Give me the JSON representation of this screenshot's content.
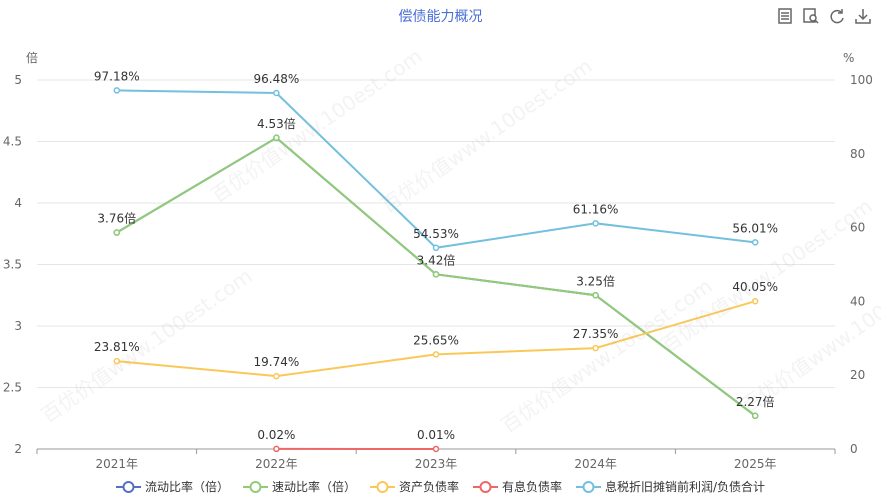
{
  "title": "偿债能力概况",
  "watermark": "百优价值www.100est.com",
  "toolbox": [
    {
      "name": "data-view-icon"
    },
    {
      "name": "zoom-icon"
    },
    {
      "name": "refresh-icon"
    },
    {
      "name": "download-icon"
    }
  ],
  "colors": {
    "grid": "#e6e6e6",
    "axis": "#999999"
  },
  "chart_data": {
    "type": "line",
    "categories": [
      "2021年",
      "2022年",
      "2023年",
      "2024年",
      "2025年"
    ],
    "y_left": {
      "label": "倍",
      "ticks": [
        "2",
        "2.5",
        "3",
        "3.5",
        "4",
        "4.5",
        "5"
      ],
      "min": 2,
      "max": 5
    },
    "y_right": {
      "label": "%",
      "ticks": [
        "0",
        "20",
        "40",
        "60",
        "80",
        "100"
      ],
      "min": 0,
      "max": 100
    },
    "grid": true,
    "legend_position": "bottom",
    "series": [
      {
        "name": "流动比率（倍）",
        "axis": "left",
        "color": "#5470c6",
        "values": [
          3.76,
          4.53,
          3.42,
          3.25,
          2.27
        ],
        "labels": [],
        "hidden_under": "速动比率（倍）"
      },
      {
        "name": "速动比率（倍）",
        "axis": "left",
        "color": "#91cc75",
        "values": [
          3.76,
          4.53,
          3.42,
          3.25,
          2.27
        ],
        "labels": [
          "3.76倍",
          "4.53倍",
          "3.42倍",
          "3.25倍",
          "2.27倍"
        ]
      },
      {
        "name": "资产负债率",
        "axis": "right",
        "color": "#fac858",
        "values": [
          23.81,
          19.74,
          25.65,
          27.35,
          40.05
        ],
        "labels": [
          "23.81%",
          "19.74%",
          "25.65%",
          "27.35%",
          "40.05%"
        ]
      },
      {
        "name": "有息负债率",
        "axis": "right",
        "color": "#ee6666",
        "values": [
          null,
          0.02,
          0.01,
          null,
          null
        ],
        "labels": [
          "",
          "0.02%",
          "0.01%",
          "",
          ""
        ]
      },
      {
        "name": "息税折旧摊销前利润/负债合计",
        "axis": "right",
        "color": "#73c0de",
        "values": [
          97.18,
          96.48,
          54.53,
          61.16,
          56.01
        ],
        "labels": [
          "97.18%",
          "96.48%",
          "54.53%",
          "61.16%",
          "56.01%"
        ]
      }
    ]
  }
}
